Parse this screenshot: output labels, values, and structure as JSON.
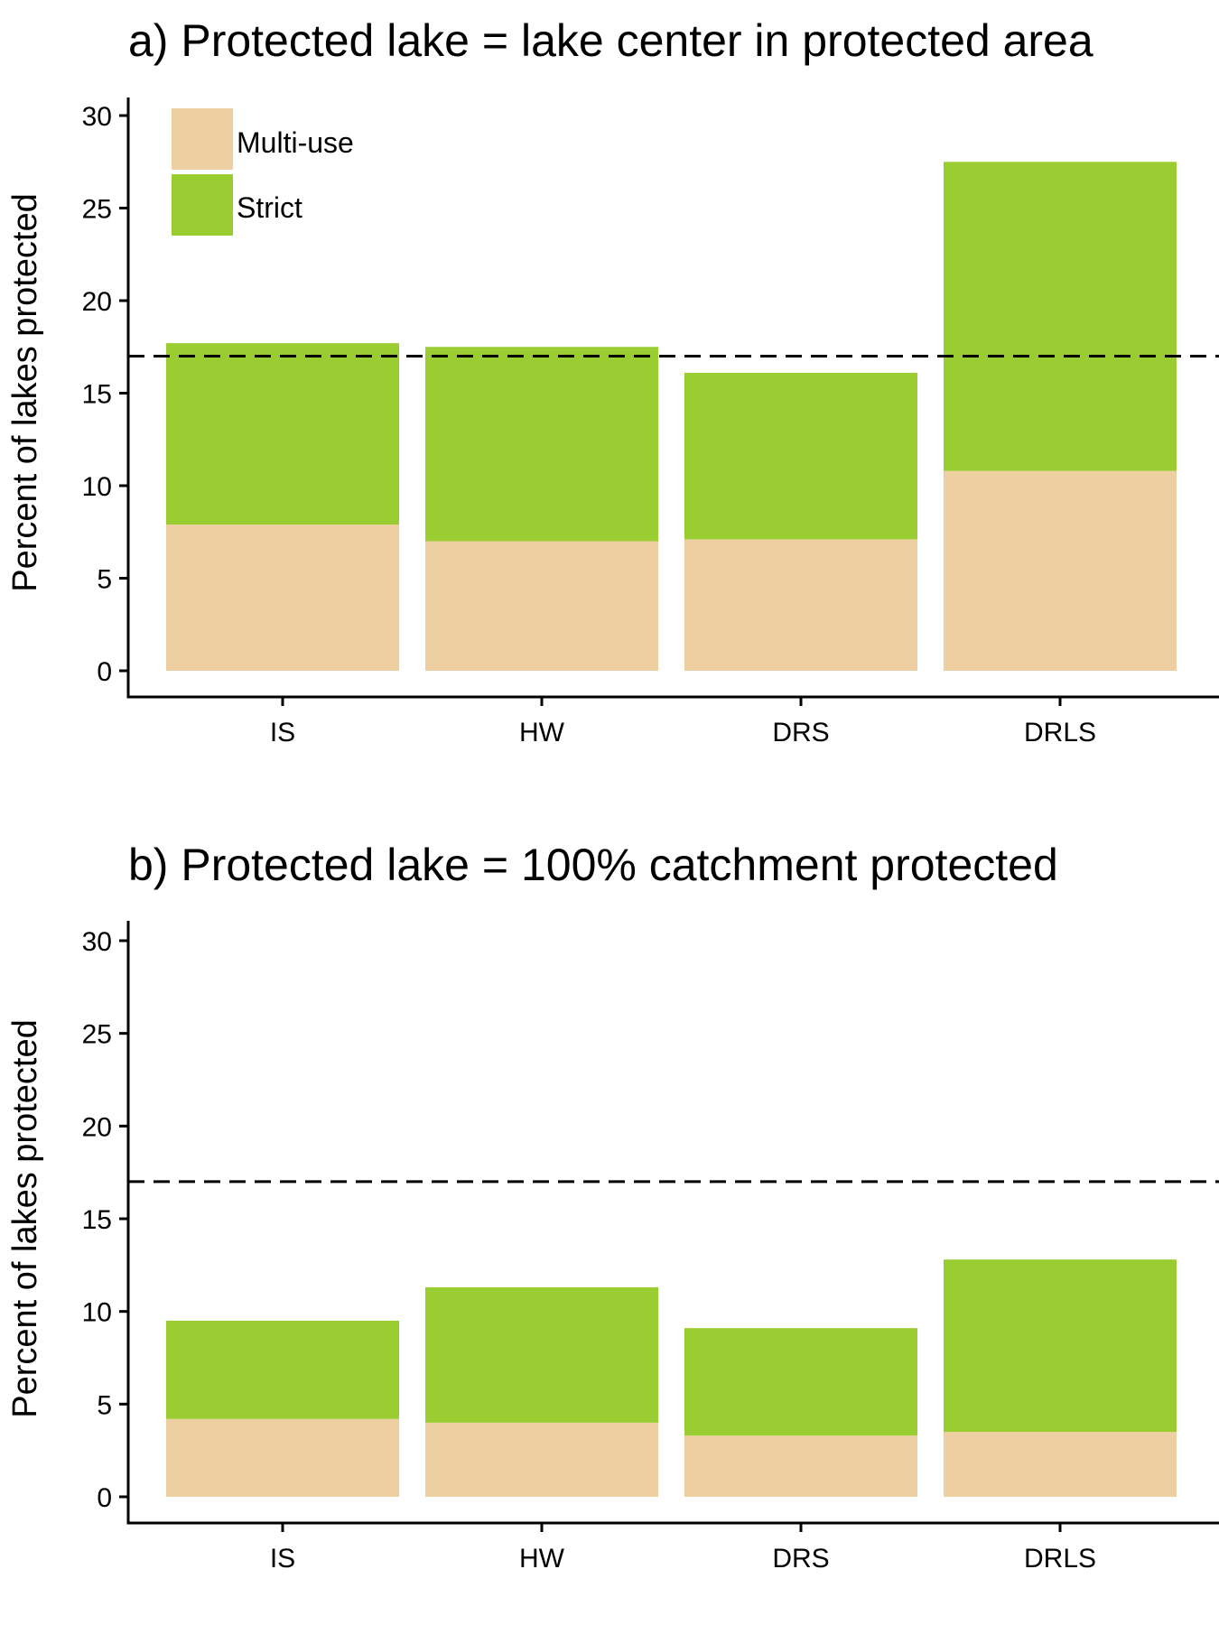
{
  "colors": {
    "multi_use": "#eecfa1",
    "strict": "#9acd32",
    "reference_line": "#000000",
    "axis": "#000000"
  },
  "chart_data": [
    {
      "type": "bar",
      "stacked": true,
      "title": "a) Protected lake = lake center in protected area",
      "xlabel": "",
      "ylabel": "Percent of lakes protected",
      "categories": [
        "IS",
        "HW",
        "DRS",
        "DRLS"
      ],
      "series": [
        {
          "name": "Multi-use",
          "values": [
            7.9,
            7.0,
            7.1,
            10.8
          ]
        },
        {
          "name": "Strict",
          "values": [
            9.8,
            10.5,
            9.0,
            16.7
          ]
        }
      ],
      "ylim": [
        0,
        31
      ],
      "yticks": [
        0,
        5,
        10,
        15,
        20,
        25,
        30
      ],
      "reference_line": 17,
      "grid": false,
      "legend": {
        "position": "top-left",
        "entries": [
          "Multi-use",
          "Strict"
        ]
      }
    },
    {
      "type": "bar",
      "stacked": true,
      "title": "b) Protected lake = 100% catchment protected",
      "xlabel": "",
      "ylabel": "Percent of lakes protected",
      "categories": [
        "IS",
        "HW",
        "DRS",
        "DRLS"
      ],
      "series": [
        {
          "name": "Multi-use",
          "values": [
            4.2,
            4.0,
            3.3,
            3.5
          ]
        },
        {
          "name": "Strict",
          "values": [
            5.3,
            7.3,
            5.8,
            9.3
          ]
        }
      ],
      "ylim": [
        0,
        31
      ],
      "yticks": [
        0,
        5,
        10,
        15,
        20,
        25,
        30
      ],
      "reference_line": 17,
      "grid": false
    }
  ]
}
